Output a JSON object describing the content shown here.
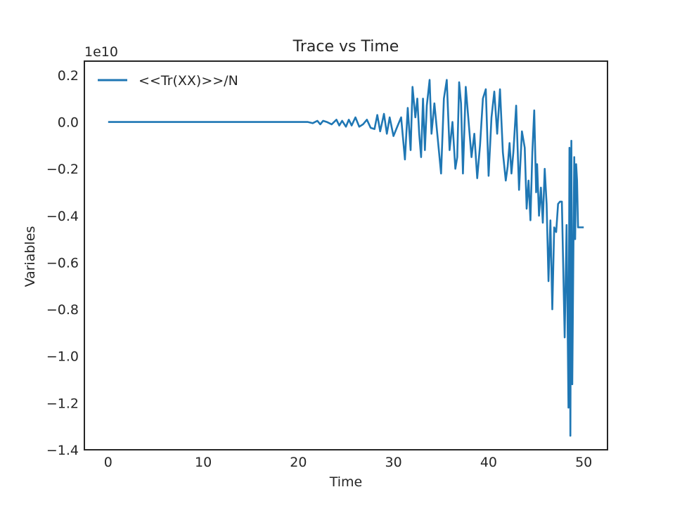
{
  "chart_data": {
    "type": "line",
    "title": "Trace vs Time",
    "xlabel": "Time",
    "ylabel": "Variables",
    "offset_text": "1e10",
    "xlim": [
      -2.5,
      52.5
    ],
    "ylim": [
      -1.4,
      0.26
    ],
    "y_scale_note": "values in units of 1e10",
    "x_ticks": [
      0,
      10,
      20,
      30,
      40,
      50
    ],
    "x_tick_labels": [
      "0",
      "10",
      "20",
      "30",
      "40",
      "50"
    ],
    "y_ticks": [
      0.2,
      0.0,
      -0.2,
      -0.4,
      -0.6,
      -0.8,
      -1.0,
      -1.2,
      -1.4
    ],
    "y_tick_labels": [
      "0.2",
      "0.0",
      "−0.2",
      "−0.4",
      "−0.6",
      "−0.8",
      "−1.0",
      "−1.2",
      "−1.4"
    ],
    "grid": false,
    "legend_position": "top-left",
    "series": [
      {
        "name": "<<Tr(XX)>>/N",
        "color": "#1f77b4",
        "x": [
          0,
          5,
          10,
          15,
          20,
          21,
          21.5,
          22,
          22.3,
          22.6,
          23,
          23.5,
          24,
          24.3,
          24.6,
          25,
          25.3,
          25.6,
          26,
          26.4,
          26.8,
          27.2,
          27.6,
          28,
          28.3,
          28.6,
          29,
          29.3,
          29.6,
          30,
          30.4,
          30.8,
          31.2,
          31.5,
          31.8,
          32,
          32.3,
          32.5,
          32.7,
          32.9,
          33.1,
          33.3,
          33.5,
          33.8,
          34,
          34.3,
          34.6,
          35,
          35.3,
          35.6,
          35.9,
          36.2,
          36.5,
          36.7,
          36.9,
          37.1,
          37.3,
          37.6,
          37.9,
          38.2,
          38.5,
          38.8,
          39.1,
          39.4,
          39.7,
          40,
          40.3,
          40.6,
          40.9,
          41.2,
          41.5,
          41.8,
          42,
          42.2,
          42.4,
          42.6,
          42.9,
          43.2,
          43.5,
          43.8,
          44,
          44.2,
          44.4,
          44.6,
          44.8,
          45,
          45.1,
          45.3,
          45.5,
          45.7,
          45.9,
          46.1,
          46.3,
          46.5,
          46.7,
          46.9,
          47.1,
          47.3,
          47.5,
          47.7,
          48,
          48.2,
          48.4,
          48.5,
          48.6,
          48.7,
          48.8,
          48.9,
          49,
          49.1,
          49.2,
          49.3,
          49.4,
          49.6,
          49.8,
          50
        ],
        "y": [
          0.0,
          0.0,
          0.0,
          0.0,
          0.0,
          0.0,
          -0.005,
          0.005,
          -0.01,
          0.005,
          0.0,
          -0.01,
          0.01,
          -0.015,
          0.005,
          -0.02,
          0.01,
          -0.015,
          0.02,
          -0.02,
          -0.01,
          0.01,
          -0.025,
          -0.03,
          0.03,
          -0.04,
          0.035,
          -0.05,
          0.02,
          -0.06,
          -0.02,
          0.02,
          -0.16,
          0.06,
          -0.12,
          0.15,
          0.02,
          0.1,
          -0.05,
          -0.15,
          0.1,
          -0.12,
          0.07,
          0.18,
          -0.05,
          0.08,
          -0.05,
          -0.22,
          0.1,
          0.18,
          -0.12,
          0.0,
          -0.2,
          -0.15,
          0.17,
          0.08,
          -0.22,
          0.15,
          0.0,
          -0.15,
          -0.05,
          -0.24,
          -0.1,
          0.1,
          0.14,
          -0.23,
          0.02,
          0.13,
          -0.05,
          0.14,
          -0.13,
          -0.25,
          -0.19,
          -0.09,
          -0.22,
          -0.13,
          0.07,
          -0.29,
          -0.04,
          -0.11,
          -0.37,
          -0.25,
          -0.42,
          -0.13,
          0.05,
          -0.3,
          -0.18,
          -0.4,
          -0.28,
          -0.43,
          -0.2,
          -0.35,
          -0.68,
          -0.42,
          -0.8,
          -0.45,
          -0.47,
          -0.35,
          -0.34,
          -0.34,
          -0.92,
          -0.44,
          -1.22,
          -0.11,
          -1.34,
          -0.08,
          -1.12,
          -0.62,
          -0.15,
          -0.5,
          -0.18,
          -0.25,
          -0.45,
          -0.45,
          -0.45,
          -0.45
        ]
      }
    ]
  }
}
